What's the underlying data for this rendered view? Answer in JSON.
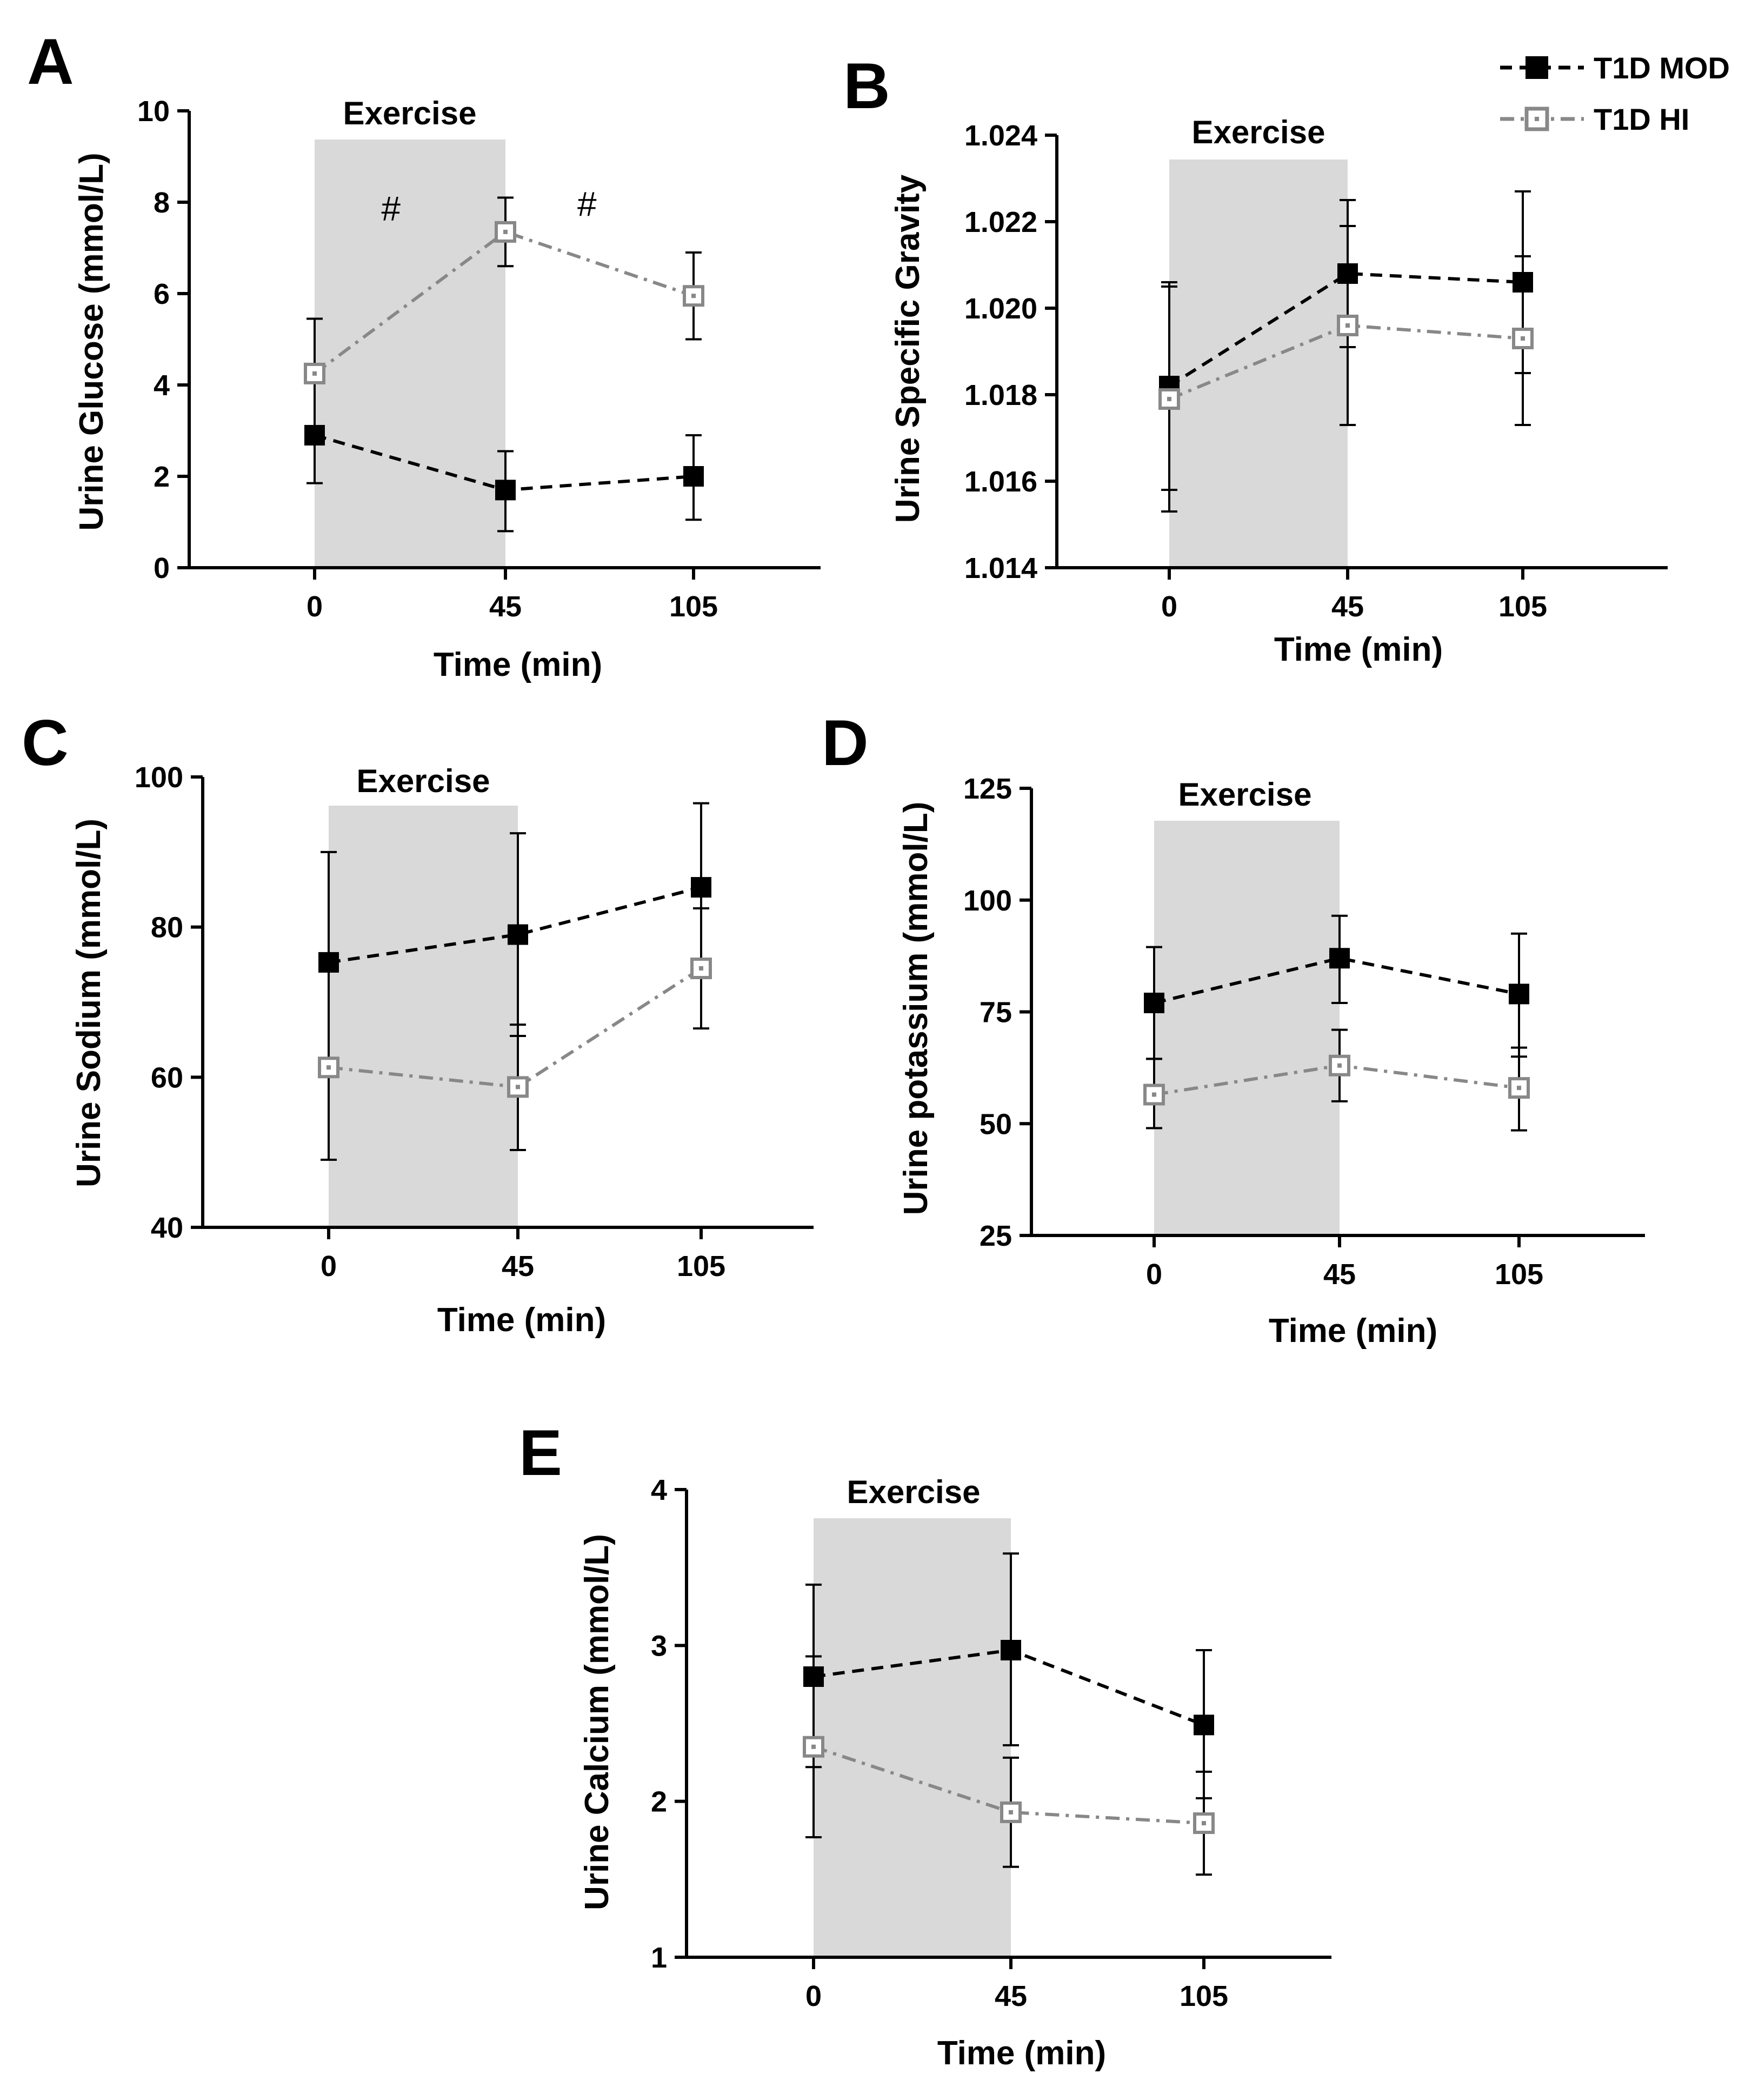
{
  "legend": {
    "items": [
      {
        "name": "T1D MOD",
        "series_key": "mod"
      },
      {
        "name": "T1D HI",
        "series_key": "hi"
      }
    ]
  },
  "colors": {
    "mod": "#000000",
    "hi": "#888888",
    "shade": "#d9d9d9",
    "axis": "#000000"
  },
  "chart_data": [
    {
      "panel": "A",
      "type": "line",
      "title": "",
      "xlabel": "Time (min)",
      "ylabel": "Urine Glucose (mmol/L)",
      "categories": [
        "0",
        "45",
        "105"
      ],
      "x": [
        0,
        45,
        105
      ],
      "ylim": [
        0,
        10
      ],
      "yticks": [
        0,
        2,
        4,
        6,
        8,
        10
      ],
      "ytick_labels": [
        "0",
        "2",
        "4",
        "6",
        "8",
        "10"
      ],
      "shade_label": "Exercise",
      "shade_range": [
        0,
        45
      ],
      "annotations": [
        {
          "text": "#",
          "x": 18,
          "y": 7.6
        },
        {
          "text": "#",
          "x": 71,
          "y": 7.7
        }
      ],
      "series": [
        {
          "name": "T1D MOD",
          "values": [
            2.9,
            1.7,
            2.0
          ],
          "err_low": [
            1.85,
            0.8,
            1.05
          ],
          "err_high": [
            5.45,
            2.55,
            2.9
          ]
        },
        {
          "name": "T1D HI",
          "values": [
            4.25,
            7.35,
            5.95
          ],
          "err_low": [
            3.0,
            6.6,
            5.0
          ],
          "err_high": [
            5.45,
            8.1,
            6.9
          ]
        }
      ]
    },
    {
      "panel": "B",
      "type": "line",
      "title": "",
      "xlabel": "Time (min)",
      "ylabel": "Urine Specific Gravity",
      "categories": [
        "0",
        "45",
        "105"
      ],
      "x": [
        0,
        45,
        105
      ],
      "ylim": [
        1.014,
        1.024
      ],
      "yticks": [
        1.014,
        1.016,
        1.018,
        1.02,
        1.022,
        1.024
      ],
      "ytick_labels": [
        "1.014",
        "1.016",
        "1.018",
        "1.020",
        "1.022",
        "1.024"
      ],
      "shade_label": "Exercise",
      "shade_range": [
        0,
        45
      ],
      "annotations": [],
      "series": [
        {
          "name": "T1D MOD",
          "values": [
            1.0182,
            1.0208,
            1.0206
          ],
          "err_low": [
            1.0158,
            1.0191,
            1.0185
          ],
          "err_high": [
            1.0206,
            1.0225,
            1.0227
          ]
        },
        {
          "name": "T1D HI",
          "values": [
            1.0179,
            1.0196,
            1.0193
          ],
          "err_low": [
            1.0153,
            1.0173,
            1.0173
          ],
          "err_high": [
            1.0205,
            1.0219,
            1.0212
          ]
        }
      ]
    },
    {
      "panel": "C",
      "type": "line",
      "title": "",
      "xlabel": "Time (min)",
      "ylabel": "Urine Sodium (mmol/L)",
      "categories": [
        "0",
        "45",
        "105"
      ],
      "x": [
        0,
        45,
        105
      ],
      "ylim": [
        40,
        100
      ],
      "yticks": [
        40,
        60,
        80,
        100
      ],
      "ytick_labels": [
        "40",
        "60",
        "80",
        "100"
      ],
      "shade_label": "Exercise",
      "shade_range": [
        0,
        45
      ],
      "annotations": [],
      "series": [
        {
          "name": "T1D MOD",
          "values": [
            75.3,
            79.0,
            85.3
          ],
          "err_low": [
            61.0,
            65.5,
            74.0
          ],
          "err_high": [
            90.0,
            92.5,
            96.5
          ]
        },
        {
          "name": "T1D HI",
          "values": [
            61.3,
            58.7,
            74.5
          ],
          "err_low": [
            49.0,
            50.3,
            66.5
          ],
          "err_high": [
            74.5,
            67.0,
            82.5
          ]
        }
      ]
    },
    {
      "panel": "D",
      "type": "line",
      "title": "",
      "xlabel": "Time (min)",
      "ylabel": "Urine potassium (mmol/L)",
      "categories": [
        "0",
        "45",
        "105"
      ],
      "x": [
        0,
        45,
        105
      ],
      "ylim": [
        25,
        125
      ],
      "yticks": [
        25,
        50,
        75,
        100,
        125
      ],
      "ytick_labels": [
        "25",
        "50",
        "75",
        "100",
        "125"
      ],
      "shade_label": "Exercise",
      "shade_range": [
        0,
        45
      ],
      "annotations": [],
      "series": [
        {
          "name": "T1D MOD",
          "values": [
            77.0,
            87.0,
            79.0
          ],
          "err_low": [
            64.5,
            77.0,
            65.0
          ],
          "err_high": [
            89.5,
            96.5,
            92.5
          ]
        },
        {
          "name": "T1D HI",
          "values": [
            56.5,
            63.0,
            58.0
          ],
          "err_low": [
            49.0,
            55.0,
            48.5
          ],
          "err_high": [
            64.5,
            71.0,
            67.0
          ]
        }
      ]
    },
    {
      "panel": "E",
      "type": "line",
      "title": "",
      "xlabel": "Time (min)",
      "ylabel": "Urine Calcium (mmol/L)",
      "categories": [
        "0",
        "45",
        "105"
      ],
      "x": [
        0,
        45,
        105
      ],
      "ylim": [
        1,
        4
      ],
      "yticks": [
        1,
        2,
        3,
        4
      ],
      "ytick_labels": [
        "1",
        "2",
        "3",
        "4"
      ],
      "shade_label": "Exercise",
      "shade_range": [
        0,
        45
      ],
      "annotations": [],
      "series": [
        {
          "name": "T1D MOD",
          "values": [
            2.8,
            2.97,
            2.49
          ],
          "err_low": [
            2.22,
            2.36,
            2.02
          ],
          "err_high": [
            3.39,
            3.59,
            2.97
          ]
        },
        {
          "name": "T1D HI",
          "values": [
            2.35,
            1.93,
            1.86
          ],
          "err_low": [
            1.77,
            1.58,
            1.53
          ],
          "err_high": [
            2.93,
            2.28,
            2.19
          ]
        }
      ]
    }
  ]
}
